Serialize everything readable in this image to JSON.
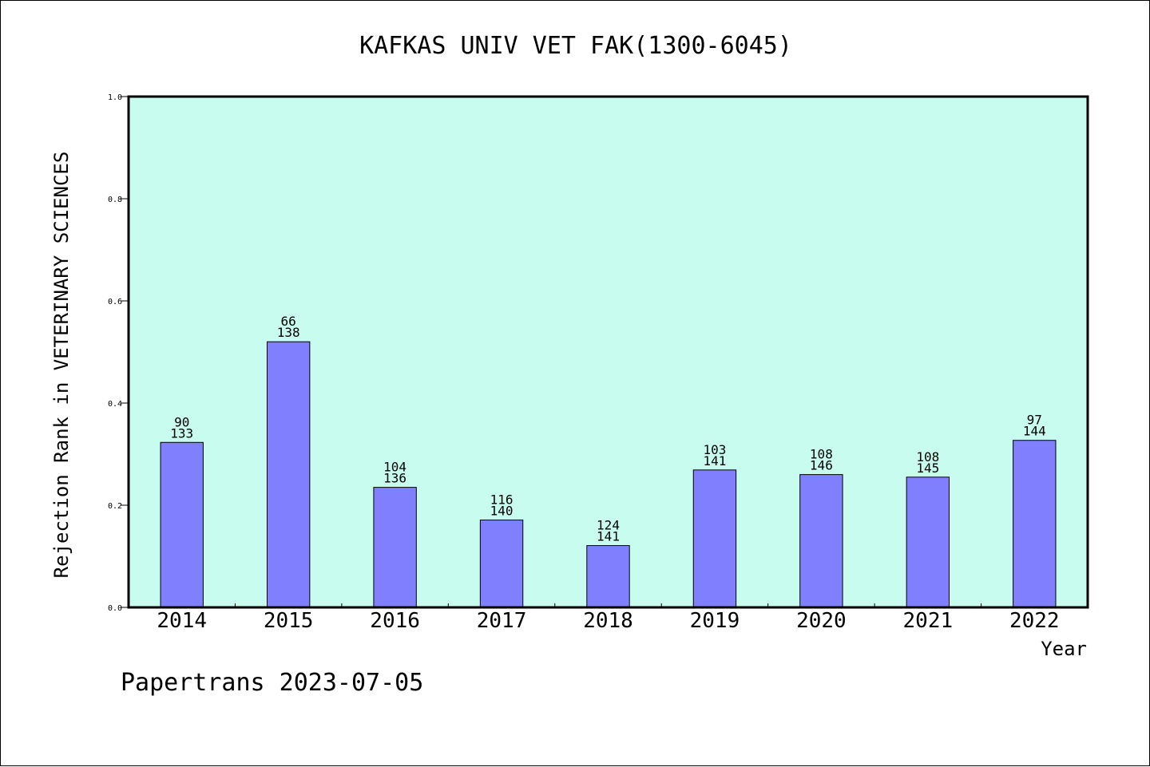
{
  "chart_data": {
    "type": "bar",
    "title": "KAFKAS UNIV VET FAK(1300-6045)",
    "ylabel": "Rejection Rank in VETERINARY SCIENCES",
    "xlabel": "Year",
    "ylim": [
      0,
      1.0
    ],
    "yticks": [
      "0.0",
      "0.2",
      "0.4",
      "0.6",
      "0.8",
      "1.0"
    ],
    "grid": false,
    "categories": [
      "2014",
      "2015",
      "2016",
      "2017",
      "2018",
      "2019",
      "2020",
      "2021",
      "2022"
    ],
    "values": [
      0.323,
      0.52,
      0.235,
      0.171,
      0.121,
      0.269,
      0.26,
      0.255,
      0.327
    ],
    "labels_top": [
      "90",
      "66",
      "104",
      "116",
      "124",
      "103",
      "108",
      "108",
      "97"
    ],
    "labels_bottom": [
      "133",
      "138",
      "136",
      "140",
      "141",
      "141",
      "146",
      "145",
      "144"
    ],
    "colors": {
      "plot_background": "#c8fcee",
      "bar_fill": "#8080ff",
      "bar_stroke": "#000000"
    }
  },
  "footer": {
    "text": "Papertrans 2023-07-05"
  }
}
